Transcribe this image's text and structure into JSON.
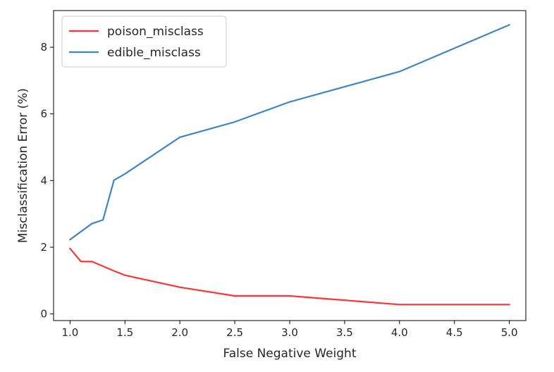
{
  "chart_data": {
    "type": "line",
    "xlabel": "False Negative Weight",
    "ylabel": "Misclassification Error (%)",
    "xlim": [
      0.85,
      5.15
    ],
    "ylim": [
      -0.2,
      9.1
    ],
    "xticks": [
      1.0,
      1.5,
      2.0,
      2.5,
      3.0,
      3.5,
      4.0,
      4.5,
      5.0
    ],
    "xtick_labels": [
      "1.0",
      "1.5",
      "2.0",
      "2.5",
      "3.0",
      "3.5",
      "4.0",
      "4.5",
      "5.0"
    ],
    "yticks": [
      0,
      2,
      4,
      6,
      8
    ],
    "ytick_labels": [
      "0",
      "2",
      "4",
      "6",
      "8"
    ],
    "grid": false,
    "legend_position": "top-left",
    "series": [
      {
        "name": "poison_misclass",
        "color": "#ff3333",
        "x": [
          1.0,
          1.1,
          1.2,
          1.3,
          1.4,
          1.5,
          2.0,
          2.5,
          3.0,
          4.0,
          5.0
        ],
        "y": [
          1.96,
          1.57,
          1.57,
          1.43,
          1.29,
          1.16,
          0.8,
          0.54,
          0.54,
          0.28,
          0.28
        ]
      },
      {
        "name": "edible_misclass",
        "color": "#3d85c6",
        "x": [
          1.0,
          1.1,
          1.2,
          1.3,
          1.4,
          1.5,
          2.0,
          2.5,
          3.0,
          4.0,
          5.0
        ],
        "y": [
          2.23,
          2.47,
          2.71,
          2.82,
          4.01,
          4.2,
          5.3,
          5.76,
          6.36,
          7.27,
          8.67
        ]
      }
    ]
  }
}
